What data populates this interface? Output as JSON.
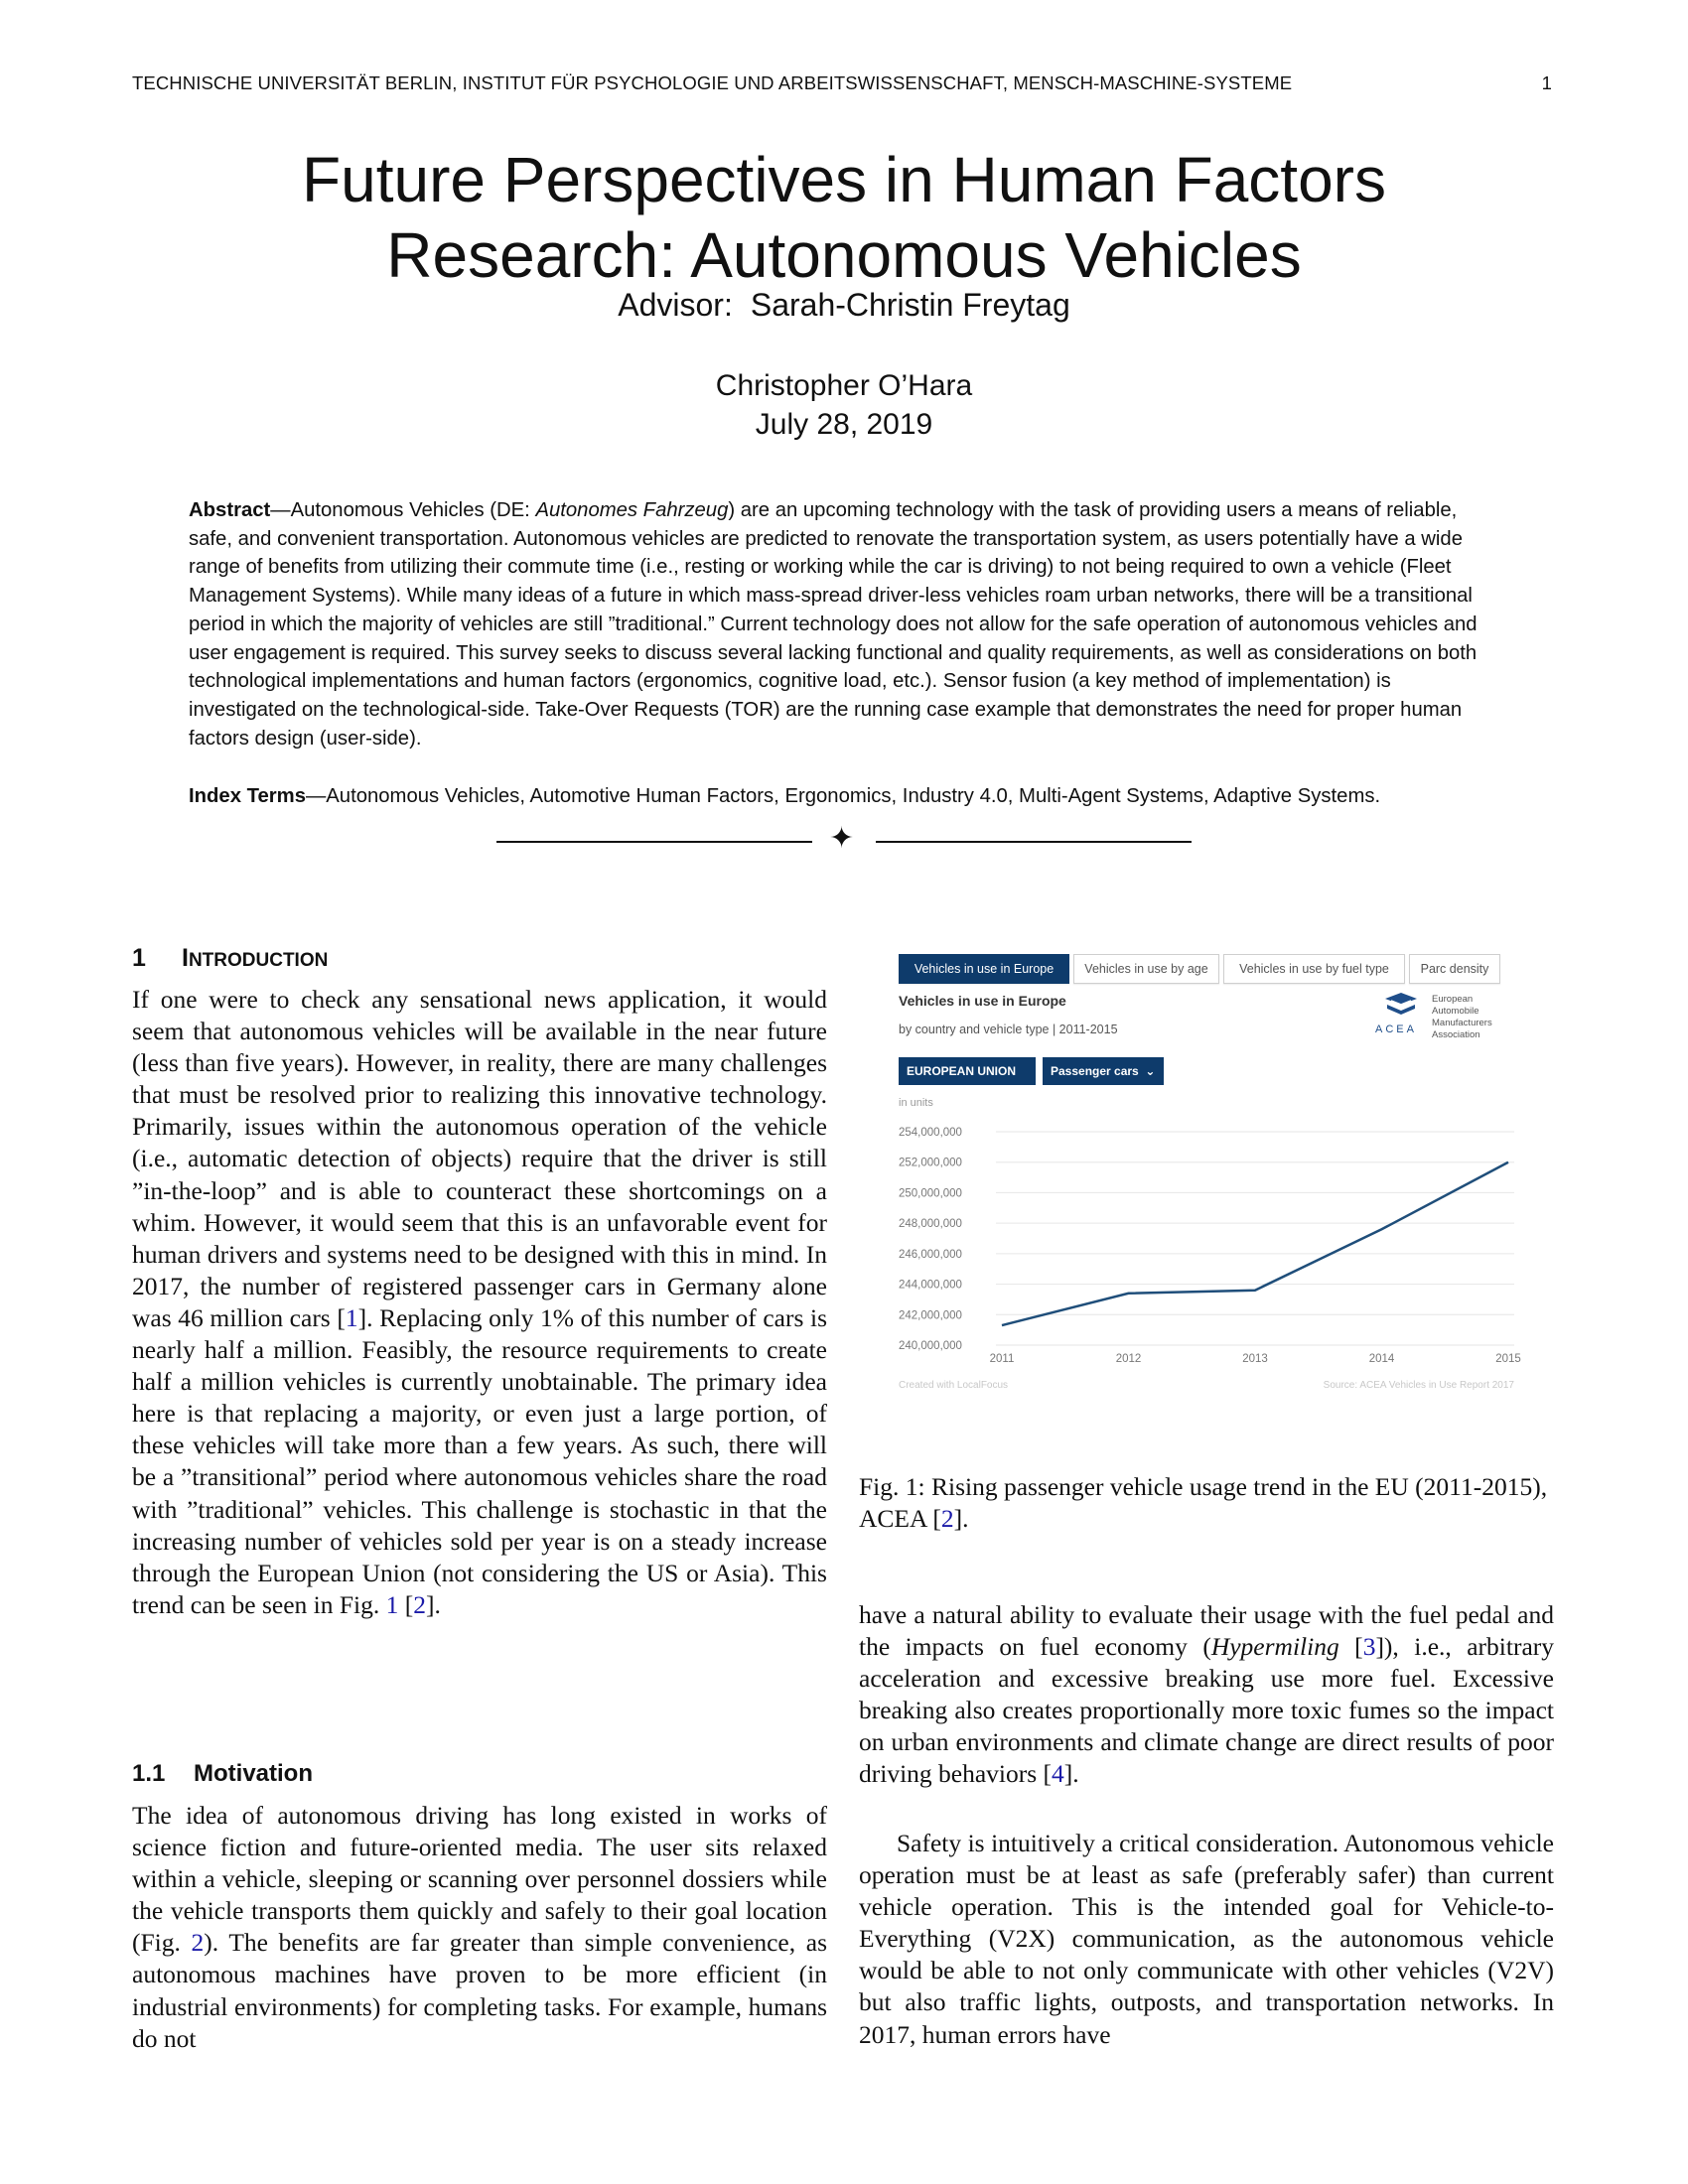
{
  "header": {
    "running_title": "TECHNISCHE UNIVERSITÄT BERLIN, INSTITUT FÜR PSYCHOLOGIE UND ARBEITSWISSENSCHAFT, MENSCH-MASCHINE-SYSTEME",
    "page_number": "1"
  },
  "title": {
    "line1": "Future Perspectives in Human Factors",
    "line2": "Research: Autonomous Vehicles"
  },
  "advisor": {
    "label": "Advisor:",
    "name": "Sarah-Christin Freytag"
  },
  "author": "Christopher O’Hara",
  "date": "July 28, 2019",
  "abstract": {
    "label": "Abstract",
    "dash": "—",
    "part1": "Autonomous Vehicles (DE: ",
    "italic": "Autonomes Fahrzeug",
    "part2": ") are an upcoming technology with the task of providing users a means of reliable, safe, and convenient transportation. Autonomous vehicles are predicted to renovate the transportation system, as users potentially have a wide range of benefits from utilizing their commute time (i.e., resting or working while the car is driving) to not being required to own a vehicle (Fleet Management Systems). While many ideas of a future in which mass-spread driver-less vehicles roam urban networks, there will be a transitional period in which the majority of vehicles are still ”traditional.” Current technology does not allow for the safe operation of autonomous vehicles and user engagement is required. This survey seeks to discuss several lacking functional and quality requirements, as well as considerations on both technological implementations and human factors (ergonomics, cognitive load, etc.). Sensor fusion (a key method of implementation) is investigated on the technological-side. Take-Over Requests (TOR) are the running case example that demonstrates the need for proper human factors design (user-side)."
  },
  "index_terms": {
    "label": "Index Terms",
    "dash": "—",
    "text": "Autonomous Vehicles, Automotive Human Factors, Ergonomics, Industry 4.0, Multi-Agent Systems, Adaptive Systems."
  },
  "separator_glyph": "✦",
  "section1": {
    "number": "1",
    "title_first": "I",
    "title_rest": "NTRODUCTION",
    "paragraph1_a": "If one were to check any sensational news application, it would seem that autonomous vehicles will be available in the near future (less than five years). However, in reality, there are many challenges that must be resolved prior to realizing this innovative technology. Primarily, issues within the autonomous operation of the vehicle (i.e., automatic detection of objects) require that the driver is still ”in-the-loop” and is able to counteract these shortcomings on a whim. However, it would seem that this is an unfavorable event for human drivers and systems need to be designed with this in mind. In 2017, the number of registered passenger cars in Germany alone was 46 million cars [",
    "ref1": "1",
    "paragraph1_b": "]. Replacing only 1% of this number of cars is nearly half a million. Feasibly, the resource requirements to create half a million vehicles is currently unobtainable. The primary idea here is that replacing a majority, or even just a large portion, of these vehicles will take more than a few years. As such, there will be a ”transitional” period where autonomous vehicles share the road with ”traditional” vehicles. This challenge is stochastic in that the increasing number of vehicles sold per year is on a steady increase through the European Union (not considering the US or Asia). This trend can be seen in Fig. ",
    "fig_ref1": "1",
    "paragraph1_c": " [",
    "ref2": "2",
    "paragraph1_d": "]."
  },
  "section1_1": {
    "number": "1.1",
    "title": "Motivation",
    "paragraph_a": "The idea of autonomous driving has long existed in works of science fiction and future-oriented media. The user sits relaxed within a vehicle, sleeping or scanning over personnel dossiers while the vehicle transports them quickly and safely to their goal location (Fig. ",
    "fig_ref2": "2",
    "paragraph_b": "). The benefits are far greater than simple convenience, as autonomous machines have proven to be more efficient (in industrial environments) for completing tasks. For example, humans do not"
  },
  "figure": {
    "tabs": [
      "Vehicles in use in Europe",
      "Vehicles in use by age",
      "Vehicles in use by fuel type",
      "Parc density"
    ],
    "chart_title": "Vehicles in use in Europe",
    "chart_subtitle": "by country and vehicle type | 2011-2015",
    "dropdown_region": "EUROPEAN UNION",
    "dropdown_type": "Passenger cars",
    "logo_word": "ACEA",
    "logo_assoc": [
      "European",
      "Automobile",
      "Manufacturers",
      "Association"
    ],
    "unit_label": "in units",
    "footer_left": "Created with LocalFocus",
    "footer_right": "Source: ACEA Vehicles in Use Report 2017",
    "caption_a": "Fig. 1: Rising passenger vehicle usage trend in the EU (2011-2015), ACEA [",
    "caption_ref": "2",
    "caption_b": "].",
    "accent_color": "#0e3b6b",
    "line_color": "#1f4e7a"
  },
  "chart_data": {
    "type": "line",
    "title": "Vehicles in use in Europe",
    "subtitle": "by country and vehicle type | 2011-2015",
    "ylabel": "in units",
    "x": [
      "2011",
      "2012",
      "2013",
      "2014",
      "2015"
    ],
    "series": [
      {
        "values": [
          241300000,
          243400000,
          243600000,
          247600000,
          252000000
        ]
      }
    ],
    "yticks": [
      "240,000,000",
      "242,000,000",
      "244,000,000",
      "246,000,000",
      "248,000,000",
      "250,000,000",
      "252,000,000",
      "254,000,000"
    ],
    "ylim": [
      240000000,
      254000000
    ],
    "grid": true
  },
  "right_column": {
    "paragraph3_a": "have a natural ability to evaluate their usage with the fuel pedal and the impacts on fuel economy (",
    "italic_term": "Hypermiling",
    "paragraph3_b": " [",
    "ref3": "3",
    "paragraph3_c": "]), i.e., arbitrary acceleration and excessive breaking use more fuel. Excessive breaking also creates proportionally more toxic fumes so the impact on urban environments and climate change are direct results of poor driving behaviors [",
    "ref4": "4",
    "paragraph3_d": "].",
    "paragraph4": "Safety is intuitively a critical consideration. Autonomous vehicle operation must be at least as safe (preferably safer) than current vehicle operation. This is the intended goal for Vehicle-to-Everything (V2X) communication, as the autonomous vehicle would be able to not only communicate with other vehicles (V2V) but also traffic lights, outposts, and transportation networks. In 2017, human errors have"
  }
}
